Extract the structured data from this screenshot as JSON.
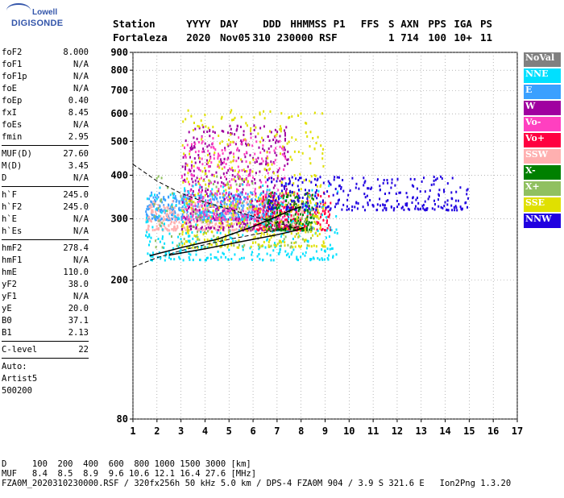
{
  "logo": {
    "line1": "Lowell",
    "line2": "DIGISONDE"
  },
  "header": {
    "row1": [
      "Station",
      "YYYY",
      "DAY",
      "DDD",
      "HHMMSS",
      "P1",
      "FFS",
      "S",
      "AXN",
      "PPS",
      "IGA",
      "PS"
    ],
    "row2": [
      "Fortaleza",
      "2020",
      "Nov05",
      "310",
      "230000",
      "RSF",
      "1",
      "714",
      "100",
      "10+",
      "11"
    ]
  },
  "params": {
    "group1": [
      {
        "label": "foF2",
        "value": "8.000"
      },
      {
        "label": "foF1",
        "value": "N/A"
      },
      {
        "label": "foF1p",
        "value": "N/A"
      },
      {
        "label": "foE",
        "value": "N/A"
      },
      {
        "label": "foEp",
        "value": "0.40"
      },
      {
        "label": "fxI",
        "value": "8.45"
      },
      {
        "label": "foEs",
        "value": "N/A"
      },
      {
        "label": "fmin",
        "value": "2.95"
      }
    ],
    "group2": [
      {
        "label": "MUF(D)",
        "value": "27.60"
      },
      {
        "label": "M(D)",
        "value": "3.45"
      },
      {
        "label": "D",
        "value": "N/A"
      }
    ],
    "group3": [
      {
        "label": "h`F",
        "value": "245.0"
      },
      {
        "label": "h`F2",
        "value": "245.0"
      },
      {
        "label": "h`E",
        "value": "N/A"
      },
      {
        "label": "h`Es",
        "value": "N/A"
      }
    ],
    "group4": [
      {
        "label": "hmF2",
        "value": "278.4"
      },
      {
        "label": "hmF1",
        "value": "N/A"
      },
      {
        "label": "hmE",
        "value": "110.0"
      },
      {
        "label": "yF2",
        "value": "38.0"
      },
      {
        "label": "yF1",
        "value": "N/A"
      },
      {
        "label": "yE",
        "value": "20.0"
      },
      {
        "label": "B0",
        "value": "37.1"
      },
      {
        "label": "B1",
        "value": "2.13"
      }
    ],
    "group5": [
      {
        "label": "C-level",
        "value": "22"
      }
    ],
    "autoscaling": [
      "Auto:",
      "Artist5",
      "500200"
    ]
  },
  "legend": [
    {
      "label": "NoVal",
      "color": "#808080"
    },
    {
      "label": "NNE",
      "color": "#00e0ff"
    },
    {
      "label": "E",
      "color": "#3aa0ff"
    },
    {
      "label": "W",
      "color": "#a000a0"
    },
    {
      "label": "Vo-",
      "color": "#ff40c0"
    },
    {
      "label": "Vo+",
      "color": "#ff0040"
    },
    {
      "label": "SSW",
      "color": "#ffb0b0"
    },
    {
      "label": "X-",
      "color": "#008000"
    },
    {
      "label": "X+",
      "color": "#90c060"
    },
    {
      "label": "SSE",
      "color": "#e0e000"
    },
    {
      "label": "NNW",
      "color": "#2000e0"
    }
  ],
  "chart_data": {
    "type": "scatter",
    "title": "",
    "xlabel": "",
    "ylabel": "",
    "xlim": [
      1,
      17
    ],
    "ylim": [
      80,
      900
    ],
    "yscale": "log",
    "x_ticks": [
      1,
      2,
      3,
      4,
      5,
      6,
      7,
      8,
      9,
      10,
      11,
      12,
      13,
      14,
      15,
      16,
      17
    ],
    "y_ticks": [
      80,
      200,
      300,
      400,
      500,
      600,
      700,
      800,
      900
    ],
    "grid": true,
    "legend_position": "right",
    "echo_clusters": [
      {
        "name": "E",
        "color": "#3aa0ff",
        "x": [
          1.5,
          7.0
        ],
        "y": [
          300,
          360
        ],
        "n": 500
      },
      {
        "name": "SSW",
        "color": "#ffb0b0",
        "x": [
          1.5,
          8.2
        ],
        "y": [
          280,
          340
        ],
        "n": 450
      },
      {
        "name": "W",
        "color": "#a000a0",
        "x": [
          3.0,
          7.5
        ],
        "y": [
          280,
          560
        ],
        "n": 450
      },
      {
        "name": "Vo-",
        "color": "#ff40c0",
        "x": [
          3.0,
          7.5
        ],
        "y": [
          300,
          520
        ],
        "n": 300
      },
      {
        "name": "Vo+",
        "color": "#ff0040",
        "x": [
          6.0,
          9.2
        ],
        "y": [
          280,
          360
        ],
        "n": 200
      },
      {
        "name": "NNE",
        "color": "#00e0ff",
        "x": [
          1.5,
          9.5
        ],
        "y": [
          230,
          380
        ],
        "n": 350
      },
      {
        "name": "X-",
        "color": "#008000",
        "x": [
          6.5,
          8.5
        ],
        "y": [
          280,
          360
        ],
        "n": 150
      },
      {
        "name": "X+",
        "color": "#90c060",
        "x": [
          1.8,
          8.5
        ],
        "y": [
          250,
          400
        ],
        "n": 150
      },
      {
        "name": "SSE",
        "color": "#e0e000",
        "x": [
          3.0,
          9.0
        ],
        "y": [
          250,
          620
        ],
        "n": 400
      },
      {
        "name": "NNW",
        "color": "#2000e0",
        "x": [
          6.5,
          15.0
        ],
        "y": [
          320,
          400
        ],
        "n": 300
      }
    ],
    "trace_o": {
      "x": [
        1.7,
        3.0,
        4.5,
        6.0,
        7.0,
        7.6,
        8.0
      ],
      "y": [
        235,
        248,
        262,
        285,
        305,
        318,
        325
      ]
    },
    "trace_x": {
      "x": [
        2.5,
        4.0,
        5.5,
        7.0,
        7.8,
        8.1
      ],
      "y": [
        236,
        246,
        258,
        270,
        278,
        283
      ]
    },
    "profile_dashed_upper": {
      "x": [
        1.0,
        2.0,
        3.0,
        4.0,
        5.0,
        6.0,
        7.0,
        8.0
      ],
      "y": [
        430,
        385,
        355,
        335,
        320,
        305,
        292,
        280
      ]
    },
    "profile_dashed_lower": {
      "x": [
        1.0,
        2.0,
        3.0,
        4.0,
        5.0,
        6.0,
        7.0,
        8.0
      ],
      "y": [
        218,
        232,
        243,
        253,
        262,
        270,
        278,
        286
      ]
    }
  },
  "footer": {
    "line1": "D     100  200  400  600  800 1000 1500 3000 [km]",
    "line2": "MUF   8.4  8.5  8.9  9.6 10.6 12.1 16.4 27.6 [MHz]",
    "line3": "FZA0M_2020310230000.RSF / 320fx256h 50 kHz 5.0 km / DPS-4 FZA0M 904 / 3.9 S 321.6 E   Ion2Png 1.3.20"
  }
}
